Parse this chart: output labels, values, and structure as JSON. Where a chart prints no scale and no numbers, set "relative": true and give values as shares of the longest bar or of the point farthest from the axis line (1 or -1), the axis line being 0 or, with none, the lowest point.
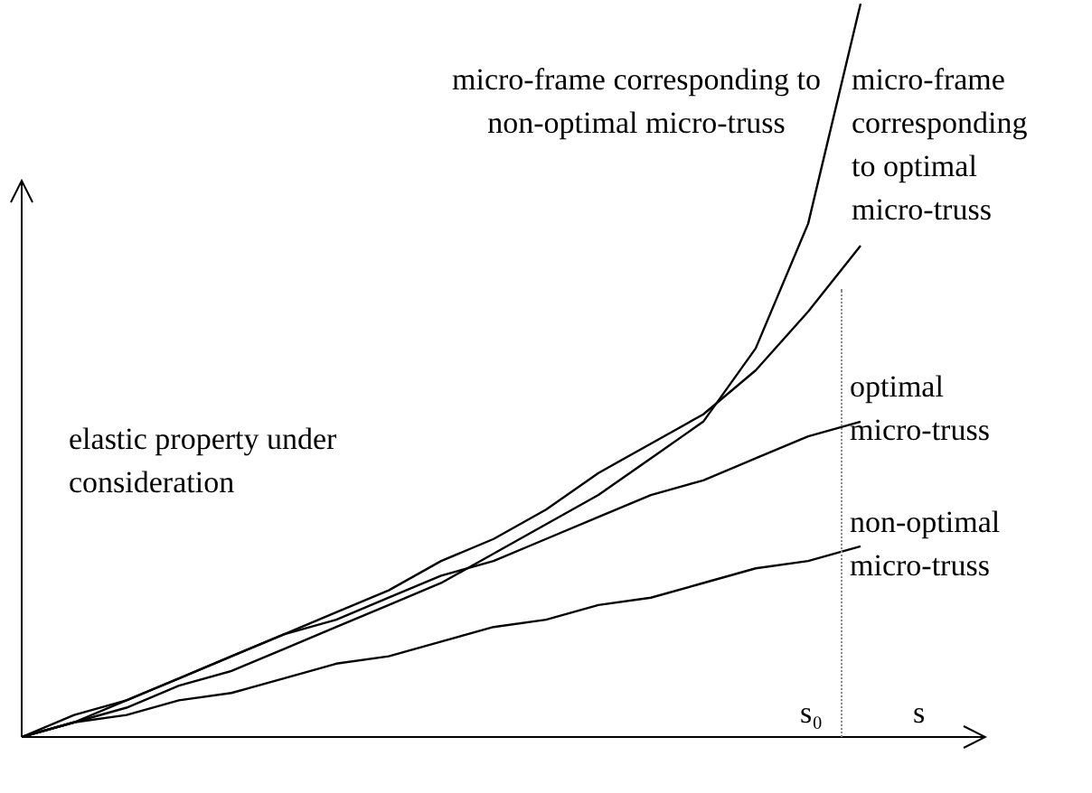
{
  "chart_data": {
    "type": "line",
    "relative": true,
    "xlabel": "s",
    "ylabel": "elastic property under consideration",
    "legend": false,
    "marker": "none",
    "line_style": "solid",
    "categories": [
      null,
      null,
      null,
      null,
      null,
      null,
      null,
      null,
      null,
      null,
      null,
      null,
      null,
      null,
      null,
      null,
      null
    ],
    "series": [
      {
        "name": "micro-frame corresponding to non-optimal micro-truss",
        "color": "#000000",
        "values": [
          0,
          0.02,
          0.04,
          0.07,
          0.09,
          0.12,
          0.15,
          0.18,
          0.21,
          0.25,
          0.29,
          0.33,
          0.38,
          0.43,
          0.53,
          0.7,
          1
        ]
      },
      {
        "name": "micro-frame corresponding to optimal micro-truss",
        "color": "#000000",
        "values": [
          0,
          0.02,
          0.05,
          0.08,
          0.11,
          0.14,
          0.17,
          0.2,
          0.24,
          0.27,
          0.31,
          0.36,
          0.4,
          0.44,
          0.5,
          0.58,
          0.67
        ]
      },
      {
        "name": "optimal micro-truss",
        "color": "#000000",
        "values": [
          0,
          0.03,
          0.05,
          0.08,
          0.11,
          0.14,
          0.16,
          0.19,
          0.22,
          0.24,
          0.27,
          0.3,
          0.33,
          0.35,
          0.38,
          0.41,
          0.43
        ]
      },
      {
        "name": "non-optimal micro-truss",
        "color": "#000000",
        "values": [
          0,
          0.02,
          0.03,
          0.05,
          0.06,
          0.08,
          0.1,
          0.11,
          0.13,
          0.15,
          0.16,
          0.18,
          0.19,
          0.21,
          0.23,
          0.24,
          0.26
        ]
      }
    ],
    "annotations": [
      "s₀"
    ]
  }
}
